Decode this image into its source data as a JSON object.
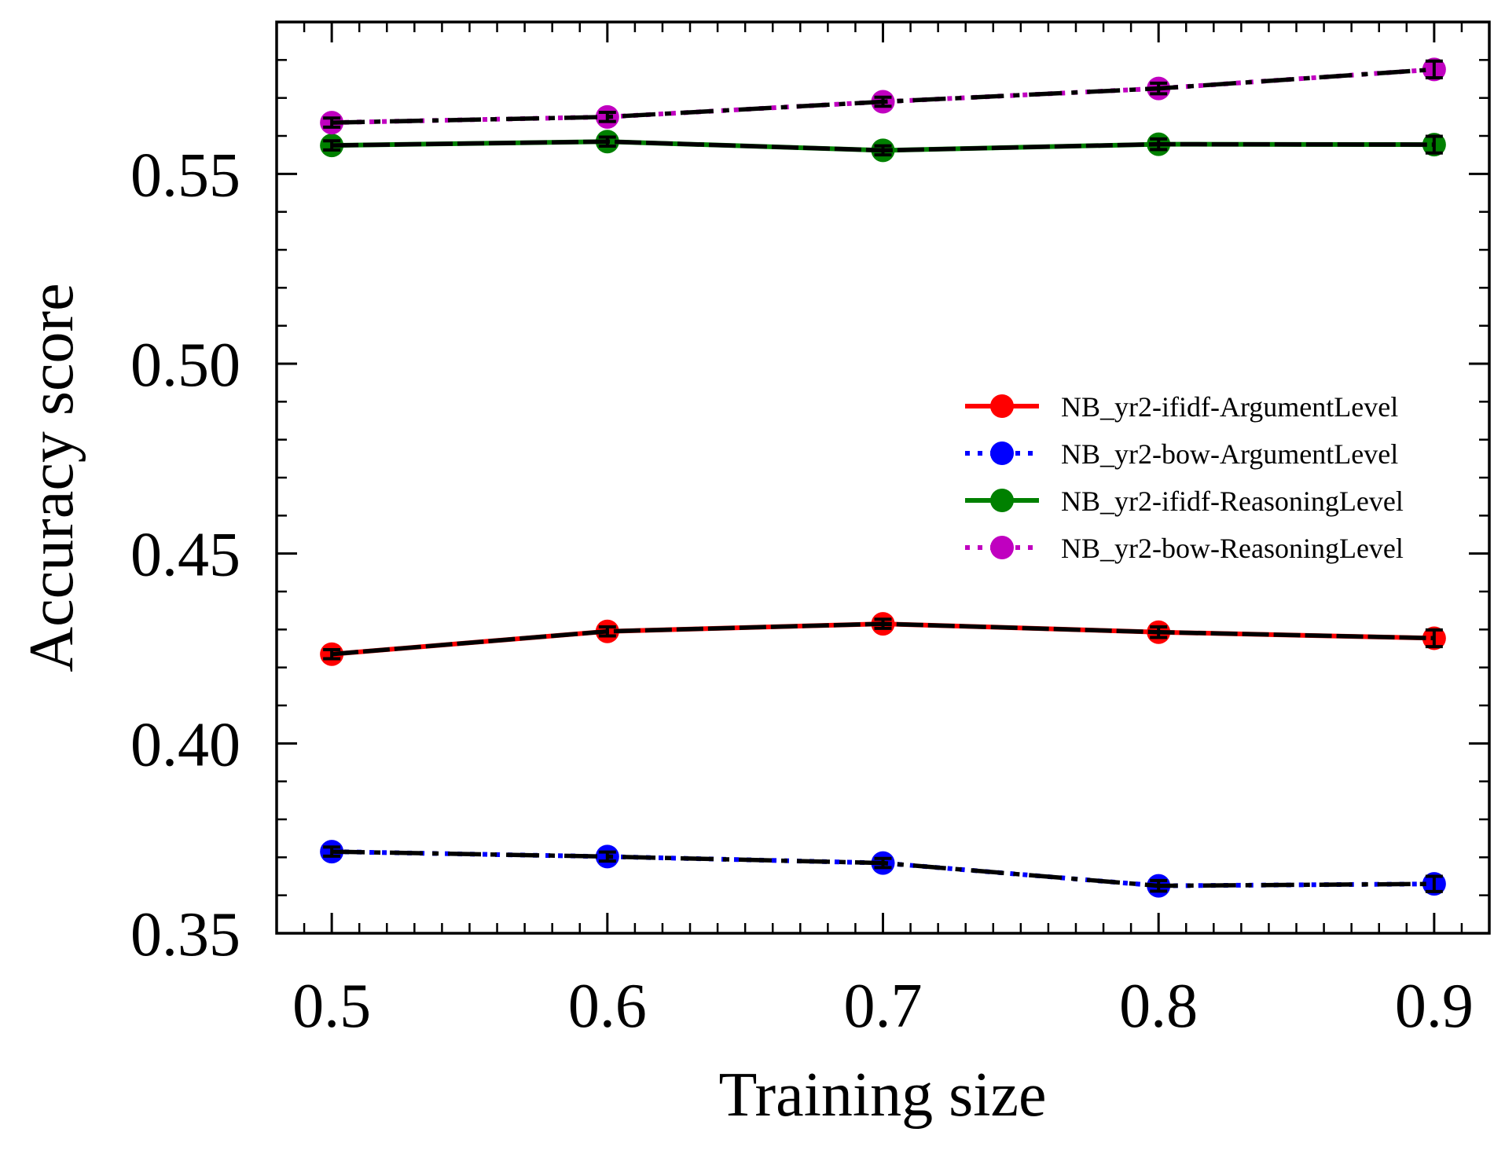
{
  "chart_data": {
    "type": "line",
    "xlabel": "Training size",
    "ylabel": "Accuracy score",
    "xlim": [
      0.48,
      0.92
    ],
    "ylim": [
      0.35,
      0.59
    ],
    "x_ticks": [
      0.5,
      0.6,
      0.7,
      0.8,
      0.9
    ],
    "x_tick_labels": [
      "0.5",
      "0.6",
      "0.7",
      "0.8",
      "0.9"
    ],
    "y_ticks": [
      0.35,
      0.4,
      0.45,
      0.5,
      0.55
    ],
    "y_tick_labels": [
      "0.35",
      "0.40",
      "0.45",
      "0.50",
      "0.55"
    ],
    "grid": false,
    "legend_position": "center-right",
    "x": [
      0.5,
      0.6,
      0.7,
      0.8,
      0.9
    ],
    "series": [
      {
        "name": "NB_yr2-ifidf-ArgumentLevel",
        "color": "#ff0000",
        "linestyle": "solid",
        "values": [
          0.4235,
          0.4295,
          0.4315,
          0.4293,
          0.4277
        ],
        "errors": [
          0.0012,
          0.0012,
          0.0012,
          0.0014,
          0.0022
        ]
      },
      {
        "name": "NB_yr2-bow-ArgumentLevel",
        "color": "#0000ff",
        "linestyle": "dotted",
        "values": [
          0.3715,
          0.3702,
          0.3685,
          0.3625,
          0.363
        ],
        "errors": [
          0.0012,
          0.0012,
          0.0012,
          0.0014,
          0.002
        ]
      },
      {
        "name": "NB_yr2-ifidf-ReasoningLevel",
        "color": "#008000",
        "linestyle": "solid",
        "values": [
          0.5575,
          0.5585,
          0.5562,
          0.5578,
          0.5577
        ],
        "errors": [
          0.0012,
          0.0012,
          0.0012,
          0.0014,
          0.0022
        ]
      },
      {
        "name": "NB_yr2-bow-ReasoningLevel",
        "color": "#c000c0",
        "linestyle": "dotted",
        "values": [
          0.5635,
          0.565,
          0.569,
          0.5725,
          0.5775
        ],
        "errors": [
          0.0012,
          0.0012,
          0.0012,
          0.0014,
          0.0022
        ]
      }
    ]
  }
}
